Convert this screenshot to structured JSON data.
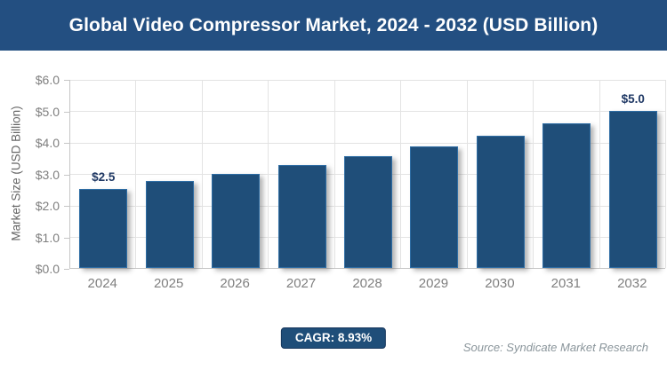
{
  "header": {
    "title": "Global Video Compressor Market, 2024 - 2032 (USD Billion)",
    "background_color": "#234F81",
    "text_color": "#FFFFFF"
  },
  "chart_data": {
    "type": "bar",
    "title": "Global Video Compressor Market, 2024 - 2032 (USD Billion)",
    "categories": [
      "2024",
      "2025",
      "2026",
      "2027",
      "2028",
      "2029",
      "2030",
      "2031",
      "2032"
    ],
    "values": [
      2.5,
      2.75,
      3.0,
      3.27,
      3.56,
      3.87,
      4.21,
      4.59,
      5.0
    ],
    "bar_labels": [
      "$2.5",
      "",
      "",
      "",
      "",
      "",
      "",
      "",
      "$5.0"
    ],
    "xlabel": "",
    "ylabel": "Market Size (USD Billion)",
    "ylim": [
      0,
      6
    ],
    "ytick_step": 1,
    "yticks": [
      "$0.0",
      "$1.0",
      "$2.0",
      "$3.0",
      "$4.0",
      "$5.0",
      "$6.0"
    ],
    "grid": true,
    "legend": "none",
    "bar_color": "#1F4E79",
    "bar_border_color": "#2E6DA4",
    "value_label_color": "#1F3864",
    "gridline_color": "#E3E3E3",
    "axis_color": "#C6C6C6",
    "tick_text_color": "#7F7F7F"
  },
  "footer": {
    "cagr_label": "CAGR: 8.93%",
    "source": "Source: Syndicate Market Research"
  }
}
